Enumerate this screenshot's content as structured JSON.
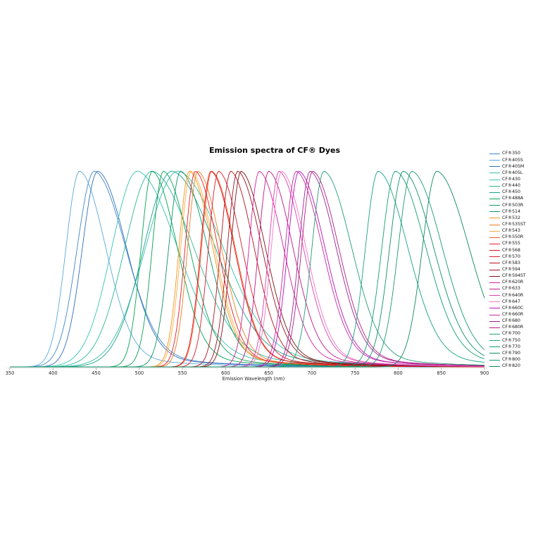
{
  "chart_data": {
    "type": "line",
    "title": "Emission spectra of CF® Dyes",
    "xlabel": "Emission Wavelength (nm)",
    "ylabel": "",
    "xlim": [
      350,
      900
    ],
    "ylim": [
      0,
      1
    ],
    "x_ticks": [
      350,
      400,
      450,
      500,
      550,
      600,
      650,
      700,
      750,
      800,
      850,
      900
    ],
    "grid": false,
    "legend_position": "right",
    "series": [
      {
        "name": "CF®350",
        "color": "#3F87C6",
        "peak_nm": 448,
        "rise_nm": 20,
        "fall_nm": 36
      },
      {
        "name": "CF®405S",
        "color": "#58A8DC",
        "peak_nm": 431,
        "rise_nm": 16,
        "fall_nm": 30
      },
      {
        "name": "CF®405M",
        "color": "#2F6FBF",
        "peak_nm": 452,
        "rise_nm": 18,
        "fall_nm": 33
      },
      {
        "name": "CF®405L",
        "color": "#38BFA7",
        "peak_nm": 545,
        "rise_nm": 38,
        "fall_nm": 52
      },
      {
        "name": "CF®430",
        "color": "#35C4B5",
        "peak_nm": 498,
        "rise_nm": 30,
        "fall_nm": 46
      },
      {
        "name": "CF®440",
        "color": "#2BB896",
        "peak_nm": 515,
        "rise_nm": 32,
        "fall_nm": 48
      },
      {
        "name": "CF®450",
        "color": "#18A38C",
        "peak_nm": 538,
        "rise_nm": 33,
        "fall_nm": 50
      },
      {
        "name": "CF®488A",
        "color": "#00A551",
        "peak_nm": 515,
        "rise_nm": 13,
        "fall_nm": 29
      },
      {
        "name": "CF®503R",
        "color": "#0B9E54",
        "peak_nm": 528,
        "rise_nm": 13,
        "fall_nm": 30
      },
      {
        "name": "CF®514",
        "color": "#0A9568",
        "peak_nm": 548,
        "rise_nm": 14,
        "fall_nm": 31
      },
      {
        "name": "CF®532",
        "color": "#F7941D",
        "peak_nm": 558,
        "rise_nm": 12,
        "fall_nm": 27
      },
      {
        "name": "CF®535ST",
        "color": "#EF7D22",
        "peak_nm": 568,
        "rise_nm": 12,
        "fall_nm": 27
      },
      {
        "name": "CF®543",
        "color": "#FBAE47",
        "peak_nm": 560,
        "rise_nm": 12,
        "fall_nm": 27
      },
      {
        "name": "CF®550R",
        "color": "#F1592A",
        "peak_nm": 584,
        "rise_nm": 12,
        "fall_nm": 27
      },
      {
        "name": "CF®555",
        "color": "#EC1C24",
        "peak_nm": 565,
        "rise_nm": 12,
        "fall_nm": 26
      },
      {
        "name": "CF®568",
        "color": "#E0161D",
        "peak_nm": 583,
        "rise_nm": 12,
        "fall_nm": 27
      },
      {
        "name": "CF®570",
        "color": "#D21F2C",
        "peak_nm": 592,
        "rise_nm": 12,
        "fall_nm": 27
      },
      {
        "name": "CF®583",
        "color": "#B5121B",
        "peak_nm": 606,
        "rise_nm": 12,
        "fall_nm": 27
      },
      {
        "name": "CF®594",
        "color": "#9C121F",
        "peak_nm": 614,
        "rise_nm": 12,
        "fall_nm": 28
      },
      {
        "name": "CF®594ST",
        "color": "#811015",
        "peak_nm": 618,
        "rise_nm": 12,
        "fall_nm": 28
      },
      {
        "name": "CF®620R",
        "color": "#D01E9D",
        "peak_nm": 639,
        "rise_nm": 12,
        "fall_nm": 28
      },
      {
        "name": "CF®633",
        "color": "#C21584",
        "peak_nm": 650,
        "rise_nm": 12,
        "fall_nm": 28
      },
      {
        "name": "CF®640R",
        "color": "#E13DAE",
        "peak_nm": 662,
        "rise_nm": 12,
        "fall_nm": 28
      },
      {
        "name": "CF®647",
        "color": "#F077C1",
        "peak_nm": 665,
        "rise_nm": 12,
        "fall_nm": 28
      },
      {
        "name": "CF®660C",
        "color": "#BC0EBC",
        "peak_nm": 685,
        "rise_nm": 13,
        "fall_nm": 30
      },
      {
        "name": "CF®660R",
        "color": "#C9289F",
        "peak_nm": 682,
        "rise_nm": 13,
        "fall_nm": 30
      },
      {
        "name": "CF®680",
        "color": "#A11F93",
        "peak_nm": 698,
        "rise_nm": 13,
        "fall_nm": 30
      },
      {
        "name": "CF®680R",
        "color": "#B31C86",
        "peak_nm": 701,
        "rise_nm": 13,
        "fall_nm": 30
      },
      {
        "name": "CF®700",
        "color": "#1F9E74",
        "peak_nm": 714,
        "rise_nm": 14,
        "fall_nm": 32
      },
      {
        "name": "CF®750",
        "color": "#17A184",
        "peak_nm": 777,
        "rise_nm": 15,
        "fall_nm": 34
      },
      {
        "name": "CF®770",
        "color": "#0FA06C",
        "peak_nm": 797,
        "rise_nm": 16,
        "fall_nm": 35
      },
      {
        "name": "CF®790",
        "color": "#0D9065",
        "peak_nm": 806,
        "rise_nm": 16,
        "fall_nm": 35
      },
      {
        "name": "CF®800",
        "color": "#169A70",
        "peak_nm": 816,
        "rise_nm": 16,
        "fall_nm": 35
      },
      {
        "name": "CF®820",
        "color": "#0C8A5C",
        "peak_nm": 845,
        "rise_nm": 17,
        "fall_nm": 37
      }
    ]
  }
}
